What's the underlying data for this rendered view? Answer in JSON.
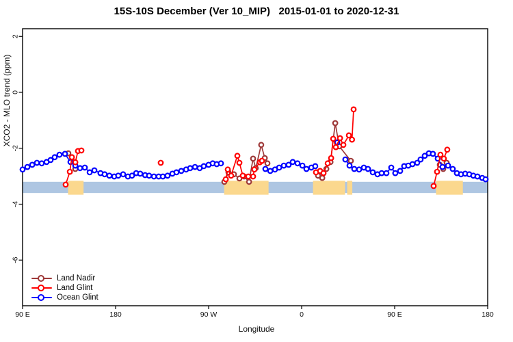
{
  "title": "15S-10S December (Ver 10_MIP)   2015-01-01 to 2020-12-31",
  "axes": {
    "x": {
      "label": "Longitude",
      "ticks": [
        {
          "value": 90,
          "label": "90 E"
        },
        {
          "value": 180,
          "label": "180"
        },
        {
          "value": 270,
          "label": "90 W"
        },
        {
          "value": 360,
          "label": "0"
        },
        {
          "value": 450,
          "label": "90 E"
        },
        {
          "value": 540,
          "label": "180"
        }
      ]
    },
    "y": {
      "label": "XCO2 - MLO trend (ppm)",
      "ticks": [
        {
          "value": 2,
          "label": "2"
        },
        {
          "value": 0,
          "label": "0"
        },
        {
          "value": -2,
          "label": "-2"
        },
        {
          "value": -4,
          "label": "-4"
        },
        {
          "value": -6,
          "label": "-6"
        }
      ]
    }
  },
  "legend": {
    "items": [
      {
        "label": "Land Nadir",
        "color": "#9e3939"
      },
      {
        "label": "Land Glint",
        "color": "#ff0000"
      },
      {
        "label": "Ocean Glint",
        "color": "#0000ff"
      }
    ]
  },
  "chart_data": {
    "type": "line",
    "title": "15S-10S December (Ver 10_MIP)   2015-01-01 to 2020-12-31",
    "xlabel": "Longitude",
    "ylabel": "XCO2 - MLO trend (ppm)",
    "xlim": [
      90,
      540
    ],
    "ylim": [
      -7.6,
      2.3
    ],
    "axis_note": "x axis spans 90E eastward around the globe: 90=90E, 180=180, 270=90W, 360=0, 450=90E, 540=180",
    "grid": false,
    "legend_position": "bottom-left",
    "series": [
      {
        "name": "Land Nadir",
        "color": "#9e3939",
        "segments": [
          [
            [
              134.3,
              -2.18
            ],
            [
              137.7,
              -2.47
            ],
            [
              141.0,
              -2.74
            ]
          ],
          [
            [
              285.2,
              -3.2
            ],
            [
              289.2,
              -2.86
            ],
            [
              294.5,
              -2.93
            ],
            [
              299.8,
              -3.08
            ],
            [
              304.4,
              -3.01
            ],
            [
              309.1,
              -3.2
            ],
            [
              313.0,
              -2.37
            ],
            [
              315.6,
              -2.71
            ],
            [
              320.9,
              -1.88
            ],
            [
              324.3,
              -2.35
            ],
            [
              326.9,
              -2.54
            ]
          ],
          [
            [
              375.9,
              -2.98
            ],
            [
              379.9,
              -3.06
            ],
            [
              383.9,
              -2.74
            ],
            [
              387.9,
              -2.49
            ],
            [
              392.5,
              -1.1
            ],
            [
              396.4,
              -1.93
            ],
            [
              407.6,
              -2.45
            ]
          ],
          [
            [
              493.7,
              -2.59
            ],
            [
              497.0,
              -2.74
            ],
            [
              500.3,
              -2.52
            ]
          ]
        ]
      },
      {
        "name": "Land Glint",
        "color": "#ff0000",
        "segments": [
          [
            [
              131.7,
              -3.3
            ],
            [
              135.7,
              -2.84
            ],
            [
              137.7,
              -2.32
            ],
            [
              141.0,
              -2.5
            ],
            [
              143.6,
              -2.1
            ],
            [
              146.9,
              -2.08
            ]
          ],
          [
            [
              223.7,
              -2.52
            ]
          ],
          [
            [
              286.6,
              -3.11
            ],
            [
              288.5,
              -2.76
            ],
            [
              291.8,
              -2.98
            ],
            [
              297.8,
              -2.27
            ],
            [
              299.8,
              -2.52
            ],
            [
              303.1,
              -2.98
            ],
            [
              308.4,
              -3.01
            ],
            [
              313.0,
              -3.01
            ],
            [
              314.3,
              -2.76
            ],
            [
              319.6,
              -2.5
            ],
            [
              321.6,
              -2.45
            ]
          ],
          [
            [
              373.9,
              -2.86
            ],
            [
              377.9,
              -2.81
            ],
            [
              381.2,
              -2.89
            ],
            [
              385.2,
              -2.54
            ],
            [
              388.5,
              -2.35
            ],
            [
              390.5,
              -1.66
            ],
            [
              393.1,
              -1.96
            ],
            [
              397.1,
              -1.64
            ],
            [
              400.4,
              -1.88
            ],
            [
              405.7,
              -1.54
            ],
            [
              408.7,
              -1.69
            ],
            [
              410.3,
              -0.61
            ]
          ],
          [
            [
              487.7,
              -3.35
            ],
            [
              491.0,
              -2.84
            ],
            [
              494.3,
              -2.23
            ],
            [
              497.6,
              -2.37
            ],
            [
              500.9,
              -2.05
            ]
          ]
        ]
      },
      {
        "name": "Ocean Glint",
        "color": "#0000ff",
        "segments": [
          [
            [
              90.0,
              -2.76
            ],
            [
              94.6,
              -2.67
            ],
            [
              99.3,
              -2.59
            ],
            [
              103.9,
              -2.52
            ],
            [
              108.5,
              -2.54
            ],
            [
              113.2,
              -2.49
            ],
            [
              117.1,
              -2.42
            ],
            [
              121.1,
              -2.32
            ],
            [
              125.7,
              -2.23
            ],
            [
              131.0,
              -2.2
            ],
            [
              136.3,
              -2.49
            ],
            [
              141.0,
              -2.62
            ],
            [
              145.6,
              -2.71
            ],
            [
              150.2,
              -2.69
            ],
            [
              154.9,
              -2.86
            ],
            [
              159.5,
              -2.79
            ],
            [
              165.4,
              -2.89
            ],
            [
              169.4,
              -2.93
            ],
            [
              174.0,
              -2.98
            ],
            [
              178.7,
              -3.01
            ],
            [
              182.6,
              -2.98
            ],
            [
              187.3,
              -2.93
            ],
            [
              191.9,
              -3.01
            ],
            [
              195.9,
              -2.98
            ],
            [
              199.9,
              -2.89
            ],
            [
              203.8,
              -2.91
            ],
            [
              208.5,
              -2.96
            ],
            [
              212.4,
              -2.98
            ],
            [
              217.1,
              -3.01
            ],
            [
              221.7,
              -3.01
            ],
            [
              225.7,
              -3.01
            ],
            [
              230.3,
              -2.98
            ],
            [
              234.9,
              -2.91
            ],
            [
              238.9,
              -2.86
            ],
            [
              243.5,
              -2.81
            ],
            [
              248.2,
              -2.76
            ],
            [
              252.1,
              -2.71
            ],
            [
              256.8,
              -2.67
            ],
            [
              261.4,
              -2.71
            ],
            [
              265.4,
              -2.64
            ],
            [
              270.0,
              -2.59
            ],
            [
              274.0,
              -2.54
            ],
            [
              277.9,
              -2.57
            ],
            [
              281.9,
              -2.54
            ]
          ],
          [
            [
              324.9,
              -2.74
            ],
            [
              329.6,
              -2.81
            ],
            [
              334.2,
              -2.76
            ],
            [
              338.2,
              -2.69
            ],
            [
              342.8,
              -2.62
            ],
            [
              347.4,
              -2.59
            ],
            [
              351.4,
              -2.49
            ],
            [
              356.0,
              -2.54
            ],
            [
              360.7,
              -2.62
            ],
            [
              364.6,
              -2.74
            ],
            [
              369.3,
              -2.69
            ],
            [
              373.2,
              -2.64
            ]
          ],
          [
            [
              394.4,
              -1.79
            ]
          ],
          [
            [
              402.3,
              -2.4
            ],
            [
              406.3,
              -2.62
            ],
            [
              410.9,
              -2.74
            ],
            [
              415.6,
              -2.76
            ],
            [
              420.2,
              -2.69
            ],
            [
              424.2,
              -2.74
            ],
            [
              428.8,
              -2.86
            ],
            [
              433.4,
              -2.93
            ],
            [
              437.4,
              -2.89
            ],
            [
              442.0,
              -2.89
            ],
            [
              446.7,
              -2.69
            ],
            [
              450.6,
              -2.89
            ],
            [
              455.3,
              -2.81
            ],
            [
              459.2,
              -2.64
            ],
            [
              463.2,
              -2.62
            ],
            [
              467.2,
              -2.57
            ],
            [
              471.8,
              -2.52
            ],
            [
              475.1,
              -2.4
            ],
            [
              479.1,
              -2.27
            ],
            [
              483.1,
              -2.18
            ],
            [
              487.0,
              -2.2
            ],
            [
              491.7,
              -2.37
            ],
            [
              496.3,
              -2.67
            ],
            [
              501.6,
              -2.62
            ],
            [
              506.2,
              -2.74
            ],
            [
              510.2,
              -2.89
            ],
            [
              514.2,
              -2.93
            ],
            [
              518.2,
              -2.91
            ],
            [
              522.1,
              -2.93
            ],
            [
              526.1,
              -2.98
            ],
            [
              530.1,
              -3.01
            ],
            [
              534.7,
              -3.06
            ],
            [
              538.0,
              -3.11
            ]
          ]
        ]
      }
    ],
    "bands": {
      "ocean": {
        "color": "#aec6e2",
        "v_top": -3.2,
        "v_bottom": -3.6
      },
      "land_segments": {
        "color": "#fbd88e",
        "ranges": [
          [
            134,
            149
          ],
          [
            285,
            328
          ],
          [
            371,
            402
          ],
          [
            404,
            409
          ],
          [
            490,
            516
          ]
        ]
      }
    }
  }
}
